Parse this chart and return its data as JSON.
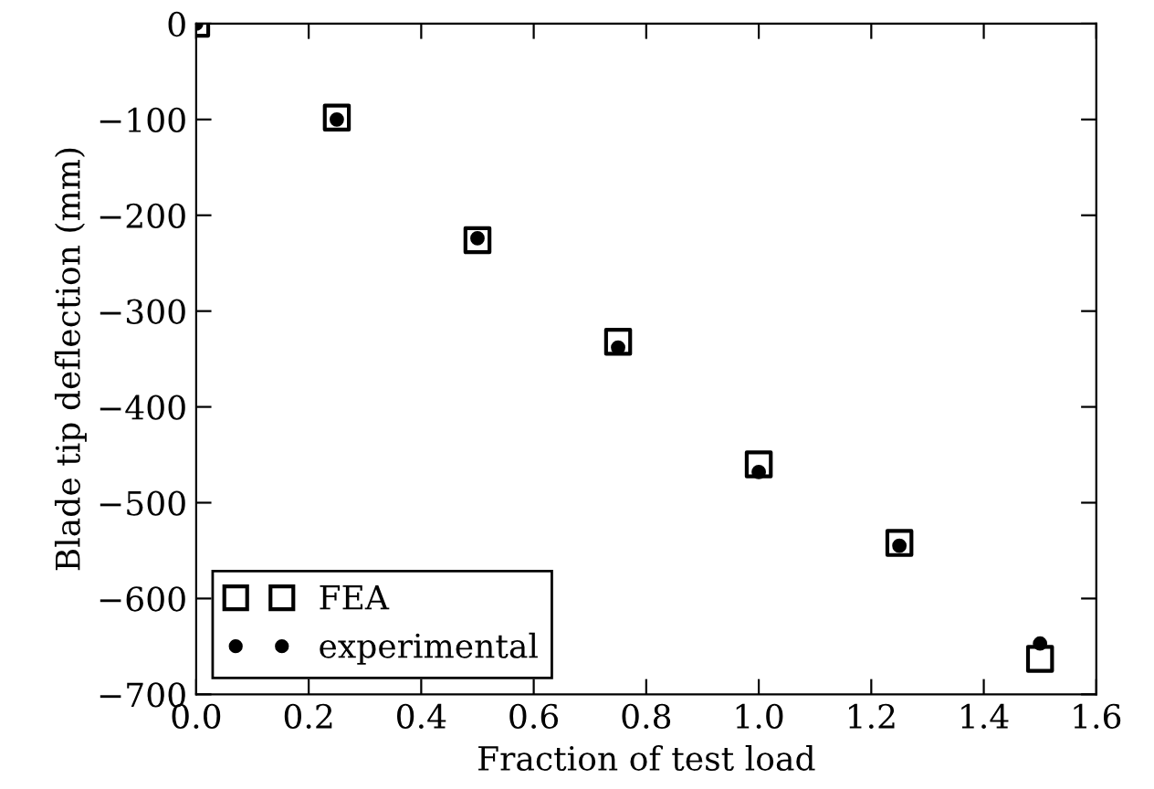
{
  "chart_data": {
    "type": "scatter",
    "xlabel": "Fraction of test load",
    "ylabel": "Blade tip deflection (mm)",
    "xlim": [
      0,
      1.6
    ],
    "xticks": [
      {
        "value": 0,
        "label": "0.0"
      },
      0.2,
      0.4,
      0.6,
      0.8,
      {
        "value": 1,
        "label": "1.0"
      },
      1.2,
      1.4,
      1.6
    ],
    "ylim": [
      -700,
      0
    ],
    "yticks": [
      -700,
      -600,
      -500,
      -400,
      -300,
      -200,
      -100,
      0
    ],
    "grid": false,
    "legend": "bottom left",
    "series": [
      {
        "name": "FEA",
        "color": "#000000",
        "marker": "square",
        "x": [
          0,
          0.25,
          0.5,
          0.75,
          1.0,
          1.25,
          1.5
        ],
        "values": [
          0,
          -98,
          -226,
          -332,
          -460,
          -542,
          -663
        ]
      },
      {
        "name": "experimental",
        "color": "#000000",
        "marker": "circle",
        "x": [
          0,
          0.25,
          0.5,
          0.75,
          1.0,
          1.25,
          1.5
        ],
        "values": [
          0,
          -100,
          -224,
          -338,
          -468,
          -545,
          -647
        ]
      }
    ]
  }
}
